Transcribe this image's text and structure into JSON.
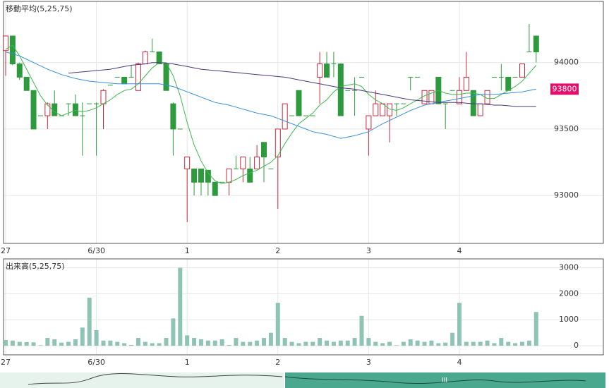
{
  "chart_data": [
    {
      "type": "candlestick",
      "title": "移動平均(5,25,75)",
      "categories": [
        "27",
        null,
        null,
        null,
        null,
        null,
        null,
        null,
        null,
        null,
        null,
        null,
        null,
        "6/30",
        null,
        null,
        null,
        null,
        null,
        null,
        null,
        null,
        null,
        null,
        null,
        null,
        "1",
        null,
        null,
        null,
        null,
        null,
        null,
        null,
        null,
        null,
        null,
        null,
        null,
        "2",
        null,
        null,
        null,
        null,
        null,
        null,
        null,
        null,
        null,
        null,
        null,
        null,
        "3",
        null,
        null,
        null,
        null,
        null,
        null,
        null,
        null,
        null,
        null,
        null,
        null,
        "4",
        null,
        null,
        null,
        null,
        null,
        null,
        null,
        null,
        null,
        null,
        null
      ],
      "open": [
        94090,
        94200,
        93990,
        93890,
        93790,
        93600,
        93600,
        93690,
        93600,
        93690,
        93690,
        93600,
        93690,
        93690,
        93690,
        93830,
        93890,
        93890,
        93890,
        93790,
        93990,
        94080,
        94080,
        93990,
        93690,
        93500,
        93200,
        93200,
        93200,
        93190,
        93100,
        93100,
        93100,
        93200,
        93200,
        93200,
        93200,
        93400,
        93200,
        93290,
        93500,
        93600,
        93790,
        93600,
        93600,
        93890,
        93990,
        93990,
        93990,
        93790,
        93790,
        93890,
        93500,
        93600,
        93600,
        93600,
        93690,
        93690,
        93890,
        93890,
        93690,
        93690,
        93890,
        93690,
        93790,
        93690,
        93790,
        93790,
        93600,
        93690,
        93890,
        93890,
        93890,
        93890,
        93890,
        94080,
        94200
      ],
      "high": [
        94200,
        94200,
        94000,
        93890,
        93790,
        93600,
        93700,
        93790,
        93600,
        93690,
        93760,
        93700,
        93690,
        93700,
        93800,
        93830,
        93890,
        93890,
        93980,
        94000,
        94090,
        94180,
        94080,
        93990,
        93700,
        93500,
        93290,
        93200,
        93200,
        93190,
        93100,
        93100,
        93200,
        93300,
        93290,
        93290,
        93380,
        93400,
        93200,
        93500,
        93690,
        93600,
        93790,
        93600,
        93600,
        94080,
        94080,
        94080,
        93990,
        93790,
        93890,
        93890,
        93600,
        93790,
        93690,
        93690,
        93690,
        93690,
        93890,
        93890,
        93790,
        93790,
        93890,
        93690,
        93790,
        93890,
        94080,
        93790,
        93690,
        93790,
        93890,
        93990,
        93890,
        93890,
        93990,
        94290,
        94200
      ],
      "low": [
        93900,
        93980,
        93870,
        93790,
        93500,
        93600,
        93500,
        93600,
        93600,
        93600,
        93600,
        93300,
        93690,
        93300,
        93500,
        93830,
        93890,
        93840,
        93890,
        93790,
        93990,
        94080,
        93990,
        93790,
        93300,
        93500,
        92800,
        93000,
        93000,
        93000,
        93000,
        93100,
        93000,
        93200,
        93100,
        93100,
        93200,
        93100,
        93200,
        92900,
        93500,
        93600,
        93600,
        93600,
        93600,
        93690,
        93890,
        93890,
        93600,
        93790,
        93600,
        93890,
        93300,
        93600,
        93600,
        93400,
        93600,
        93690,
        93790,
        93890,
        93690,
        93690,
        93690,
        93500,
        93790,
        93690,
        93790,
        93600,
        93600,
        93690,
        93890,
        93790,
        93790,
        93890,
        93890,
        94080,
        94000
      ],
      "close": [
        94200,
        93990,
        93890,
        93790,
        93500,
        93600,
        93690,
        93600,
        93600,
        93690,
        93600,
        93600,
        93690,
        93690,
        93790,
        93830,
        93890,
        93840,
        93890,
        93990,
        94080,
        94080,
        93990,
        93790,
        93500,
        93500,
        93290,
        93100,
        93100,
        93100,
        93000,
        93100,
        93200,
        93200,
        93290,
        93100,
        93290,
        93290,
        93200,
        93500,
        93690,
        93600,
        93600,
        93600,
        93600,
        93990,
        93890,
        93990,
        93600,
        93790,
        93790,
        93890,
        93600,
        93690,
        93690,
        93690,
        93690,
        93690,
        93890,
        93890,
        93790,
        93790,
        93690,
        93690,
        93790,
        93790,
        93890,
        93600,
        93690,
        93790,
        93890,
        93890,
        93790,
        93890,
        93990,
        94080,
        94080
      ],
      "up_color": "#c8283c",
      "down_color": "#2e9a3e",
      "series": [
        {
          "name": "5",
          "color": "#3cb84a",
          "values": [
            94100,
            94130,
            94050,
            93950,
            93850,
            93750,
            93680,
            93630,
            93600,
            93620,
            93640,
            93630,
            93640,
            93660,
            93690,
            93720,
            93760,
            93790,
            93800,
            93840,
            93900,
            93960,
            94000,
            94000,
            93900,
            93750,
            93550,
            93380,
            93260,
            93170,
            93110,
            93090,
            93100,
            93120,
            93150,
            93170,
            93190,
            93220,
            93250,
            93300,
            93390,
            93470,
            93540,
            93580,
            93620,
            93680,
            93720,
            93780,
            93820,
            93830,
            93840,
            93820,
            93760,
            93720,
            93690,
            93650,
            93640,
            93660,
            93690,
            93720,
            93750,
            93770,
            93790,
            93770,
            93760,
            93760,
            93770,
            93770,
            93760,
            93730,
            93730,
            93760,
            93790,
            93820,
            93860,
            93920,
            93980
          ]
        },
        {
          "name": "25",
          "color": "#3a8fd8",
          "values": [
            94080,
            94065,
            94050,
            94025,
            94000,
            93975,
            93950,
            93930,
            93910,
            93895,
            93880,
            93870,
            93860,
            93855,
            93850,
            93845,
            93840,
            93840,
            93840,
            93840,
            93840,
            93840,
            93840,
            93830,
            93820,
            93800,
            93780,
            93760,
            93740,
            93720,
            93700,
            93690,
            93680,
            93665,
            93650,
            93635,
            93620,
            93610,
            93600,
            93580,
            93560,
            93540,
            93520,
            93500,
            93480,
            93470,
            93460,
            93445,
            93430,
            93440,
            93450,
            93465,
            93480,
            93510,
            93540,
            93565,
            93590,
            93615,
            93640,
            93660,
            93680,
            93690,
            93700,
            93710,
            93720,
            93730,
            93740,
            93750,
            93760,
            93760,
            93760,
            93765,
            93770,
            93775,
            93780,
            93790,
            93800
          ]
        },
        {
          "name": "75",
          "color": "#4a3a78",
          "values": [
            null,
            null,
            null,
            null,
            null,
            null,
            null,
            null,
            null,
            93920,
            93925,
            93930,
            93935,
            93940,
            93945,
            93950,
            93960,
            93970,
            93980,
            93985,
            93990,
            94000,
            94000,
            93995,
            93990,
            93980,
            93970,
            93960,
            93950,
            93945,
            93940,
            93935,
            93930,
            93925,
            93920,
            93915,
            93910,
            93905,
            93900,
            93895,
            93890,
            93880,
            93870,
            93860,
            93850,
            93840,
            93830,
            93820,
            93810,
            93805,
            93800,
            93790,
            93780,
            93770,
            93760,
            93750,
            93740,
            93730,
            93720,
            93715,
            93710,
            93705,
            93700,
            93700,
            93700,
            93700,
            93695,
            93690,
            93690,
            93685,
            93680,
            93680,
            93675,
            93670,
            93670,
            93670,
            93670
          ]
        }
      ],
      "last_price": 93800,
      "last_color": "#e0106a",
      "ylim": [
        92640,
        94460
      ],
      "yticks": [
        93000,
        93500,
        94000
      ],
      "grid": true
    },
    {
      "type": "bar",
      "title": "出来高(5,25,75)",
      "categories": [
        "27",
        null,
        null,
        null,
        null,
        null,
        null,
        null,
        null,
        null,
        null,
        null,
        null,
        "6/30",
        null,
        null,
        null,
        null,
        null,
        null,
        null,
        null,
        null,
        null,
        null,
        null,
        "1",
        null,
        null,
        null,
        null,
        null,
        null,
        null,
        null,
        null,
        null,
        null,
        null,
        "2",
        null,
        null,
        null,
        null,
        null,
        null,
        null,
        null,
        null,
        null,
        null,
        null,
        "3",
        null,
        null,
        null,
        null,
        null,
        null,
        null,
        null,
        null,
        null,
        null,
        null,
        "4",
        null,
        null,
        null,
        null,
        null,
        null,
        null,
        null,
        null,
        null,
        null
      ],
      "values": [
        220,
        200,
        150,
        140,
        130,
        20,
        300,
        250,
        120,
        150,
        250,
        700,
        1850,
        600,
        200,
        200,
        150,
        100,
        30,
        300,
        150,
        100,
        100,
        300,
        1050,
        3000,
        400,
        300,
        250,
        200,
        200,
        250,
        30,
        300,
        150,
        150,
        200,
        300,
        500,
        1650,
        300,
        150,
        100,
        150,
        150,
        300,
        200,
        150,
        200,
        200,
        300,
        1150,
        300,
        150,
        100,
        150,
        20,
        150,
        250,
        200,
        150,
        200,
        100,
        120,
        500,
        1650,
        150,
        150,
        150,
        200,
        100,
        300,
        150,
        100,
        150,
        200,
        1300
      ],
      "color": "#8fc4b4",
      "ylim": [
        -350,
        3340
      ],
      "yticks": [
        0,
        1000,
        2000,
        3000
      ],
      "grid": true
    }
  ]
}
